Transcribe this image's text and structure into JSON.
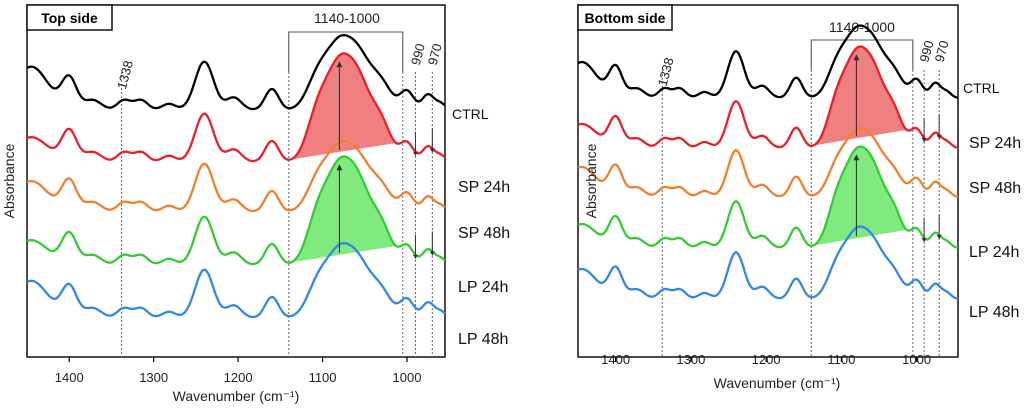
{
  "chart_data": [
    {
      "type": "line",
      "title": "Top side",
      "xlabel": "Wavenumber (cm⁻¹)",
      "ylabel": "Absorbance",
      "x_reversed": true,
      "xlim": [
        1450,
        955
      ],
      "xticks": [
        {
          "value": 1400,
          "label": "1400"
        },
        {
          "value": 1300,
          "label": "1300"
        },
        {
          "value": 1200,
          "label": "1200"
        },
        {
          "value": 1100,
          "label": "1100"
        },
        {
          "value": 1000,
          "label": "1000"
        }
      ],
      "vlines": [
        {
          "value": 1338,
          "label": "1338"
        },
        {
          "value": 1140,
          "label": ""
        },
        {
          "value": 1005,
          "label": ""
        },
        {
          "value": 990,
          "label": "990"
        },
        {
          "value": 970,
          "label": "970"
        }
      ],
      "bracket": {
        "from": 1140,
        "to": 1005,
        "label": "1140-1000"
      },
      "series": [
        {
          "name": "CTRL",
          "color": "#000000"
        },
        {
          "name": "SP 24h",
          "color": "#e8202a",
          "fill": "#f07f7f"
        },
        {
          "name": "SP 48h",
          "color": "#f08030"
        },
        {
          "name": "LP 24h",
          "color": "#33cc33",
          "fill": "#80ea80"
        },
        {
          "name": "LP 48h",
          "color": "#3388e6"
        }
      ]
    },
    {
      "type": "line",
      "title": "Bottom side",
      "xlabel": "Wavenumber (cm⁻¹)",
      "ylabel": "Absorbance",
      "x_reversed": true,
      "xlim": [
        1450,
        945
      ],
      "xticks": [
        {
          "value": 1400,
          "label": "1400"
        },
        {
          "value": 1300,
          "label": "1300"
        },
        {
          "value": 1200,
          "label": "1200"
        },
        {
          "value": 1100,
          "label": "1100"
        },
        {
          "value": 1000,
          "label": "1000"
        }
      ],
      "vlines": [
        {
          "value": 1338,
          "label": "1338"
        },
        {
          "value": 1140,
          "label": ""
        },
        {
          "value": 1005,
          "label": ""
        },
        {
          "value": 990,
          "label": "990"
        },
        {
          "value": 970,
          "label": "970"
        }
      ],
      "bracket": {
        "from": 1140,
        "to": 1005,
        "label": "1140-1000"
      },
      "series": [
        {
          "name": "CTRL",
          "color": "#000000"
        },
        {
          "name": "SP 24h",
          "color": "#e8202a",
          "fill": "#f07f7f"
        },
        {
          "name": "SP 48h",
          "color": "#f08030"
        },
        {
          "name": "LP 24h",
          "color": "#33cc33",
          "fill": "#80ea80"
        },
        {
          "name": "LP 48h",
          "color": "#3388e6"
        }
      ]
    }
  ]
}
